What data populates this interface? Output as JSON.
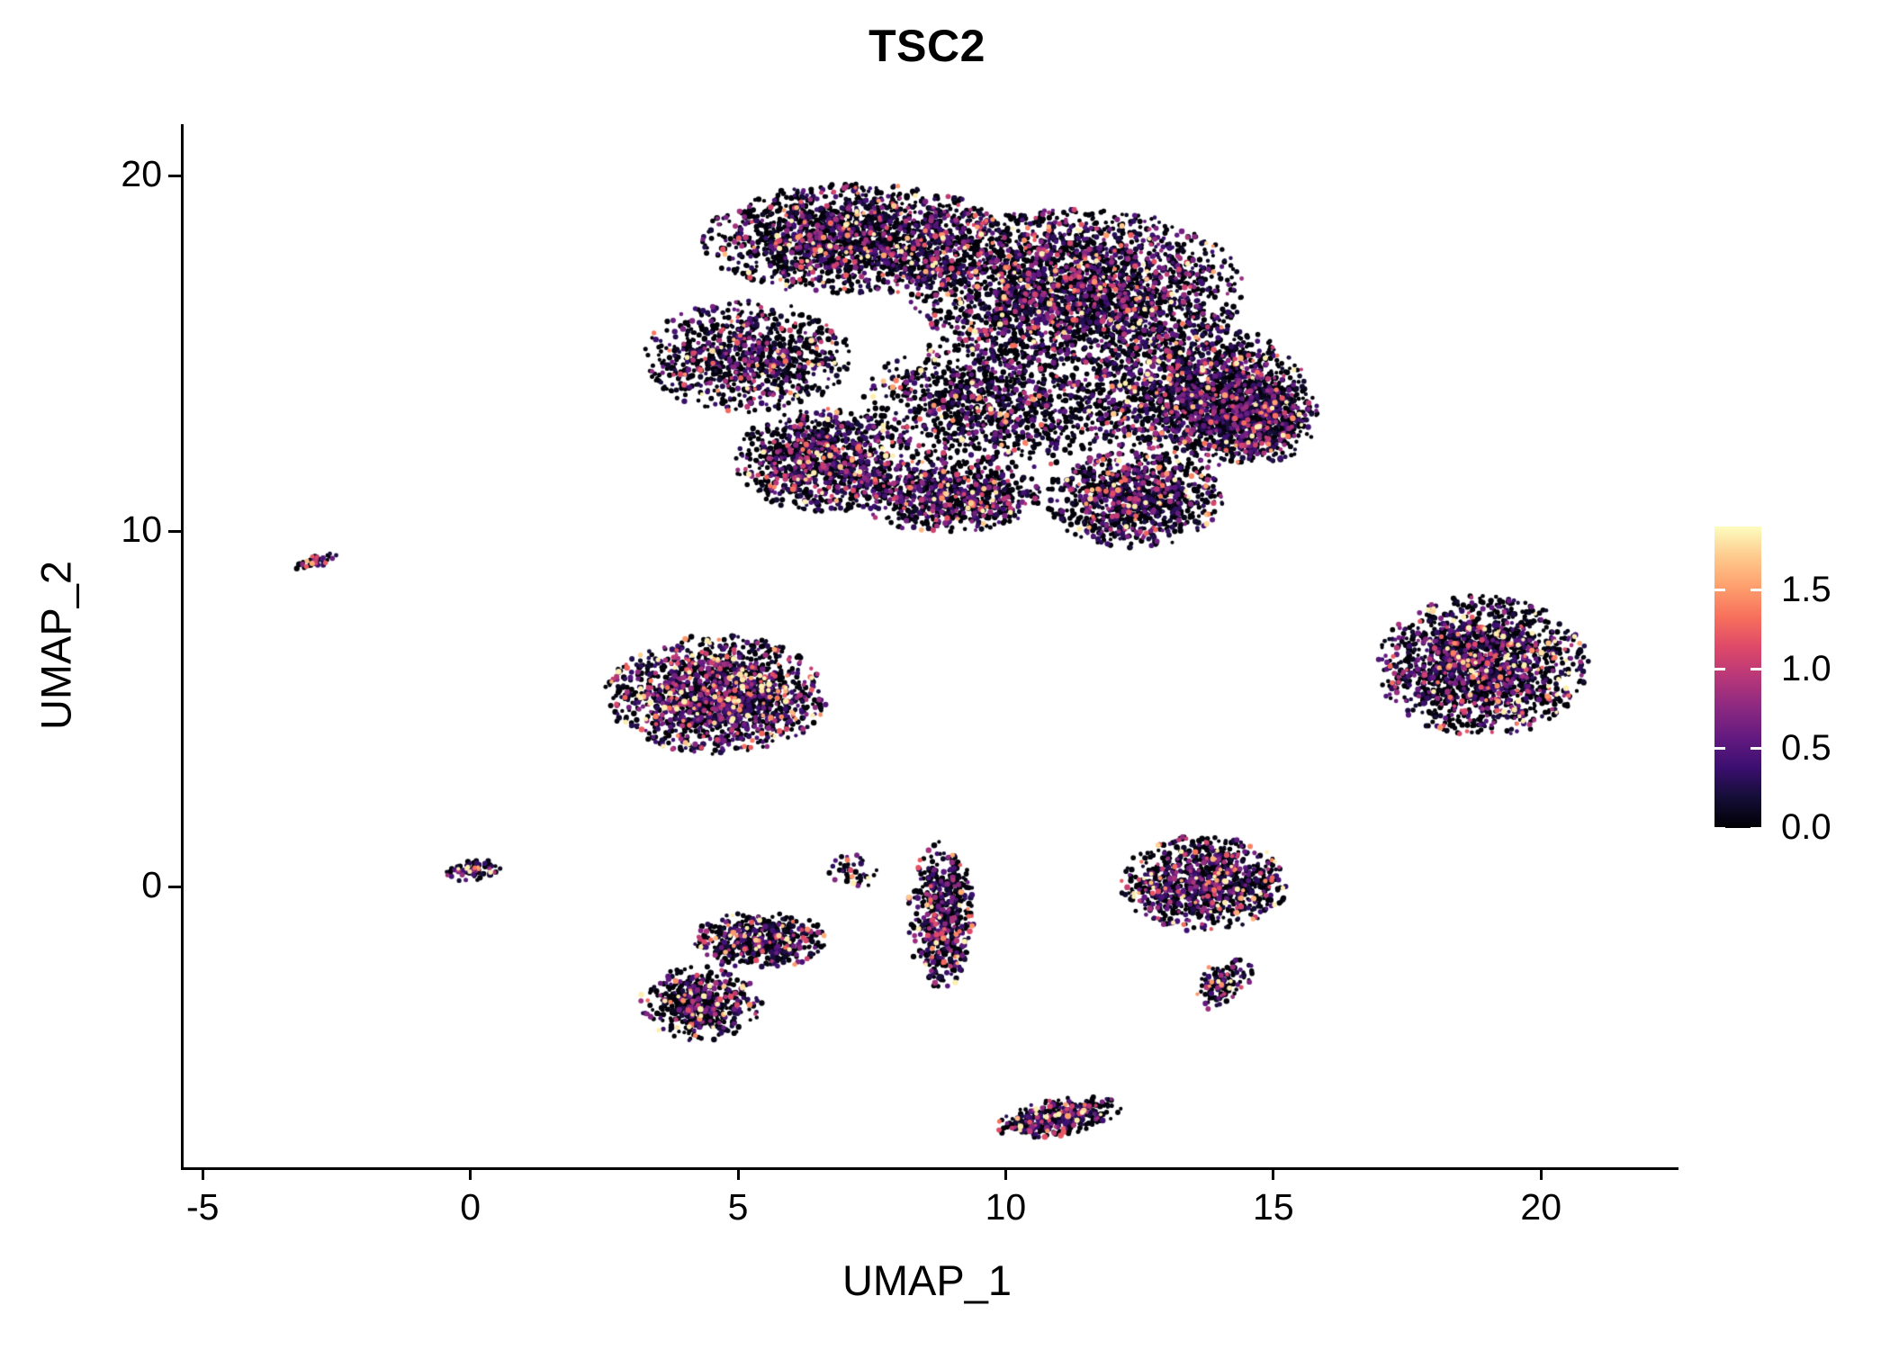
{
  "chart_data": {
    "type": "scatter",
    "title": "TSC2",
    "xlabel": "UMAP_1",
    "ylabel": "UMAP_2",
    "xlim": [
      -5.34,
      22.4
    ],
    "ylim": [
      -7.85,
      21.4
    ],
    "grid": false,
    "legend_position": "right",
    "colors": {
      "background": "#ffffff",
      "axis": "#000000",
      "text": "#000000"
    },
    "x_ticks": [
      {
        "value": -5,
        "label": "-5"
      },
      {
        "value": 0,
        "label": "0"
      },
      {
        "value": 5,
        "label": "5"
      },
      {
        "value": 10,
        "label": "10"
      },
      {
        "value": 15,
        "label": "15"
      },
      {
        "value": 20,
        "label": "20"
      }
    ],
    "y_ticks": [
      {
        "value": 0,
        "label": "0"
      },
      {
        "value": 10,
        "label": "10"
      },
      {
        "value": 20,
        "label": "20"
      }
    ],
    "colorbar": {
      "min": 0,
      "max": 1.9,
      "colormap": "magma",
      "stops": [
        "#000004",
        "#140e36",
        "#3b0f70",
        "#641a80",
        "#8c2981",
        "#b73779",
        "#de4968",
        "#f7705c",
        "#fe9f6d",
        "#feca8d",
        "#fcfdbf"
      ],
      "ticks": [
        {
          "value": 0.0,
          "label": "0.0"
        },
        {
          "value": 0.5,
          "label": "0.5"
        },
        {
          "value": 1.0,
          "label": "1.0"
        },
        {
          "value": 1.5,
          "label": "1.5"
        }
      ]
    },
    "point_style": {
      "radius_min": 2.0,
      "radius_max": 3.3,
      "default_zero_frac": 0.52,
      "default_expr_mean": 0.5,
      "max_value": 1.85,
      "seed": 1234
    },
    "clusters": [
      {
        "name": "main-upper-left",
        "cx": 7.2,
        "cy": 18.2,
        "rx": 2.8,
        "ry": 1.5,
        "n": 2000,
        "zero_frac": 0.55
      },
      {
        "name": "main-upper-right",
        "cx": 11.3,
        "cy": 16.8,
        "rx": 3.0,
        "ry": 2.2,
        "n": 2800,
        "zero_frac": 0.5
      },
      {
        "name": "main-right",
        "cx": 13.6,
        "cy": 13.8,
        "rx": 2.0,
        "ry": 2.0,
        "n": 1800,
        "zero_frac": 0.5
      },
      {
        "name": "main-center",
        "cx": 9.8,
        "cy": 13.6,
        "rx": 2.4,
        "ry": 1.8,
        "n": 1200,
        "zero_frac": 0.58
      },
      {
        "name": "main-left-tip",
        "cx": 5.2,
        "cy": 14.9,
        "rx": 1.9,
        "ry": 1.5,
        "n": 900,
        "zero_frac": 0.55
      },
      {
        "name": "main-lower-left",
        "cx": 6.6,
        "cy": 12.0,
        "rx": 1.6,
        "ry": 1.4,
        "n": 1000,
        "zero_frac": 0.5,
        "expr_mean": 0.55
      },
      {
        "name": "main-lower-center",
        "cx": 8.9,
        "cy": 11.0,
        "rx": 1.7,
        "ry": 1.0,
        "n": 800,
        "zero_frac": 0.5
      },
      {
        "name": "main-lower-right",
        "cx": 12.4,
        "cy": 10.9,
        "rx": 1.6,
        "ry": 1.3,
        "n": 1000,
        "zero_frac": 0.48
      },
      {
        "name": "main-far-right",
        "cx": 14.8,
        "cy": 13.2,
        "rx": 1.0,
        "ry": 1.2,
        "n": 500,
        "zero_frac": 0.5
      },
      {
        "name": "tiny-far-left",
        "cx": -2.9,
        "cy": 9.15,
        "rx": 0.45,
        "ry": 0.16,
        "n": 45,
        "rot_deg": 28,
        "zero_frac": 0.35,
        "expr_mean": 0.6
      },
      {
        "name": "mid-left",
        "cx": 4.6,
        "cy": 5.4,
        "rx": 2.0,
        "ry": 1.6,
        "n": 1600,
        "zero_frac": 0.42,
        "expr_mean": 0.6
      },
      {
        "name": "right-island",
        "cx": 18.9,
        "cy": 6.2,
        "rx": 1.9,
        "ry": 1.9,
        "n": 1700,
        "zero_frac": 0.5,
        "expr_mean": 0.55
      },
      {
        "name": "tiny-origin",
        "cx": 0.05,
        "cy": 0.45,
        "rx": 0.5,
        "ry": 0.28,
        "n": 70,
        "rot_deg": 10,
        "zero_frac": 0.4
      },
      {
        "name": "tiny-mid",
        "cx": 7.1,
        "cy": 0.4,
        "rx": 0.5,
        "ry": 0.55,
        "n": 45,
        "zero_frac": 0.45
      },
      {
        "name": "vertical-strip",
        "cx": 8.8,
        "cy": -0.8,
        "rx": 0.6,
        "ry": 2.0,
        "n": 550,
        "zero_frac": 0.45,
        "expr_mean": 0.55
      },
      {
        "name": "lower-left-a",
        "cx": 5.4,
        "cy": -1.5,
        "rx": 1.2,
        "ry": 0.8,
        "n": 500,
        "zero_frac": 0.5,
        "expr_mean": 0.55
      },
      {
        "name": "lower-left-b",
        "cx": 4.3,
        "cy": -3.3,
        "rx": 1.1,
        "ry": 1.0,
        "n": 500,
        "zero_frac": 0.55,
        "expr_mean": 0.55
      },
      {
        "name": "lower-right",
        "cx": 13.7,
        "cy": 0.1,
        "rx": 1.5,
        "ry": 1.3,
        "n": 1000,
        "zero_frac": 0.48,
        "expr_mean": 0.55
      },
      {
        "name": "hook",
        "cx": 14.1,
        "cy": -2.7,
        "rx": 0.45,
        "ry": 0.8,
        "n": 130,
        "rot_deg": -20,
        "zero_frac": 0.45
      },
      {
        "name": "bottom-island",
        "cx": 11.0,
        "cy": -6.5,
        "rx": 1.15,
        "ry": 0.5,
        "n": 380,
        "rot_deg": 15,
        "zero_frac": 0.45,
        "expr_mean": 0.55
      }
    ]
  }
}
